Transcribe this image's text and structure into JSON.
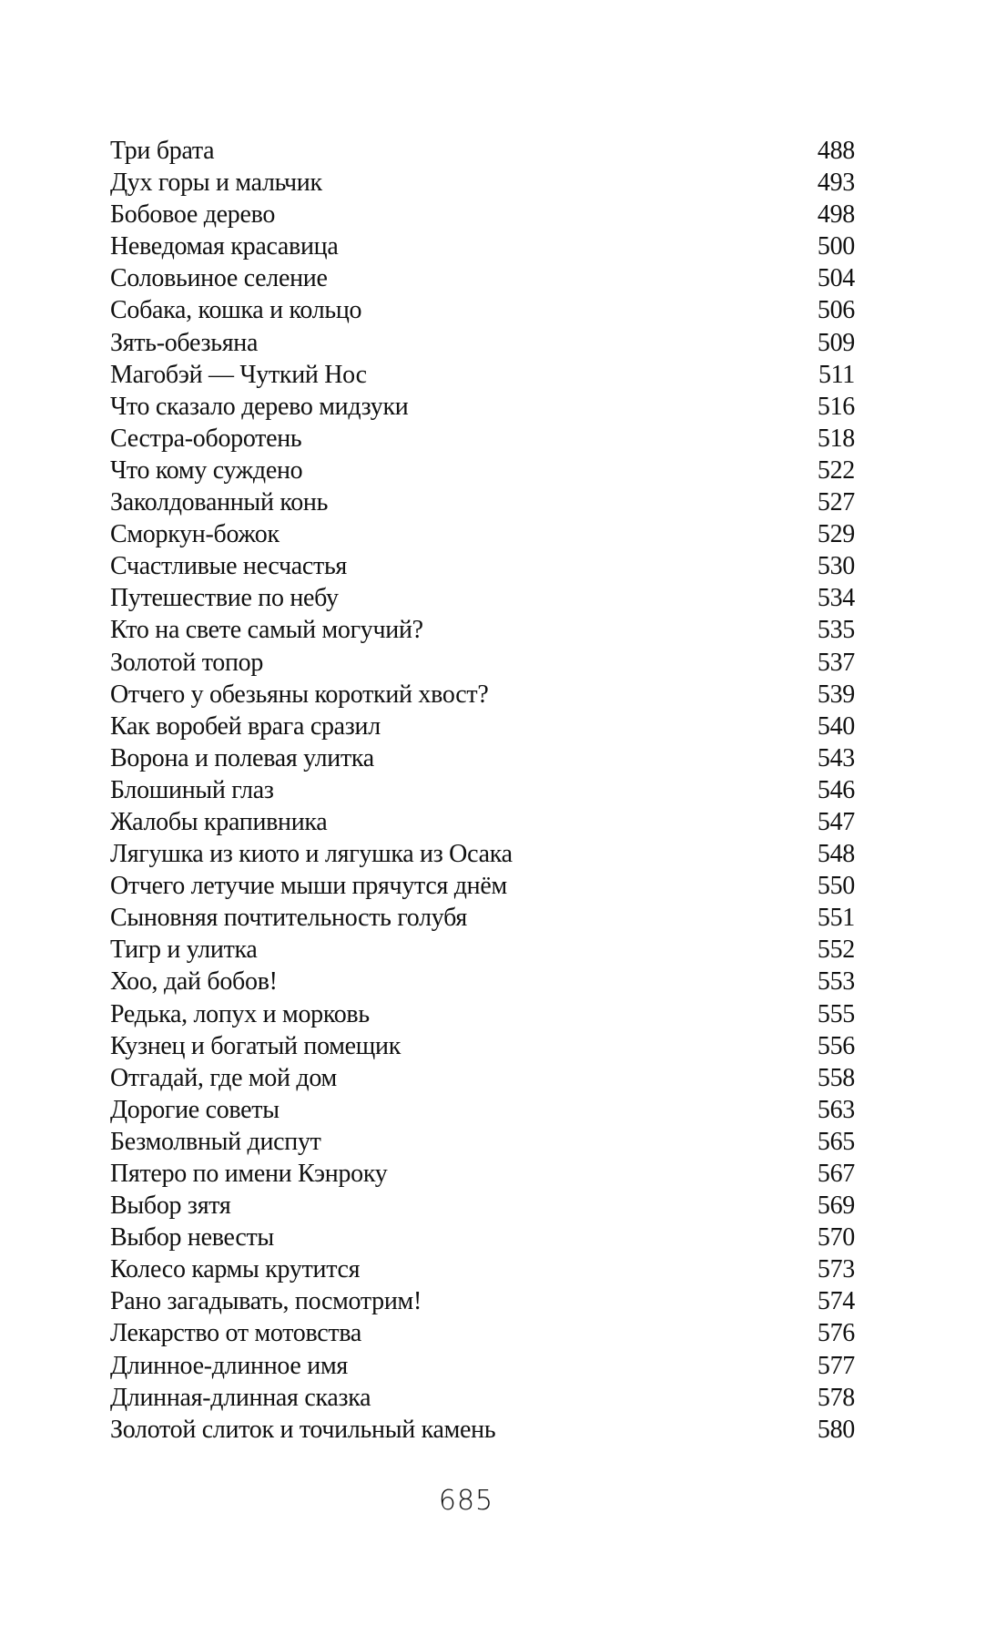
{
  "toc": [
    {
      "title": "Три брата",
      "page": "488"
    },
    {
      "title": "Дух горы и мальчик",
      "page": "493"
    },
    {
      "title": "Бобовое дерево",
      "page": "498"
    },
    {
      "title": "Неведомая красавица",
      "page": "500"
    },
    {
      "title": "Соловьиное селение",
      "page": "504"
    },
    {
      "title": "Собака, кошка и кольцо",
      "page": "506"
    },
    {
      "title": "Зять-обезьяна",
      "page": "509"
    },
    {
      "title": "Магобэй — Чуткий Нос",
      "page": "511"
    },
    {
      "title": "Что сказало дерево мидзуки",
      "page": "516"
    },
    {
      "title": "Сестра-оборотень",
      "page": "518"
    },
    {
      "title": "Что кому суждено",
      "page": "522"
    },
    {
      "title": "Заколдованный конь",
      "page": "527"
    },
    {
      "title": "Сморкун-божок",
      "page": "529"
    },
    {
      "title": "Счастливые несчастья",
      "page": "530"
    },
    {
      "title": "Путешествие по небу",
      "page": "534"
    },
    {
      "title": "Кто на свете самый могучий?",
      "page": "535"
    },
    {
      "title": "Золотой топор",
      "page": "537"
    },
    {
      "title": "Отчего у обезьяны короткий хвост?",
      "page": "539"
    },
    {
      "title": "Как воробей врага сразил",
      "page": "540"
    },
    {
      "title": "Ворона и полевая улитка",
      "page": "543"
    },
    {
      "title": "Блошиный глаз",
      "page": "546"
    },
    {
      "title": "Жалобы крапивника",
      "page": "547"
    },
    {
      "title": "Лягушка из киото и лягушка из Осака",
      "page": "548"
    },
    {
      "title": "Отчего летучие мыши прячутся днём",
      "page": "550"
    },
    {
      "title": "Сыновняя почтительность голубя",
      "page": "551"
    },
    {
      "title": "Тигр и улитка",
      "page": "552"
    },
    {
      "title": "Хоо, дай бобов!",
      "page": "553"
    },
    {
      "title": "Редька, лопух и морковь",
      "page": "555"
    },
    {
      "title": "Кузнец и богатый помещик",
      "page": "556"
    },
    {
      "title": "Отгадай, где мой дом",
      "page": "558"
    },
    {
      "title": "Дорогие советы",
      "page": "563"
    },
    {
      "title": "Безмолвный диспут",
      "page": "565"
    },
    {
      "title": "Пятеро по имени Кэнроку",
      "page": "567"
    },
    {
      "title": "Выбор зятя",
      "page": "569"
    },
    {
      "title": "Выбор невесты",
      "page": "570"
    },
    {
      "title": "Колесо кармы крутится",
      "page": "573"
    },
    {
      "title": "Рано загадывать, посмотрим!",
      "page": "574"
    },
    {
      "title": "Лекарство от мотовства",
      "page": "576"
    },
    {
      "title": "Длинное-длинное имя",
      "page": "577"
    },
    {
      "title": "Длинная-длинная сказка",
      "page": "578"
    },
    {
      "title": "Золотой слиток и точильный камень",
      "page": "580"
    }
  ],
  "folio": "685"
}
